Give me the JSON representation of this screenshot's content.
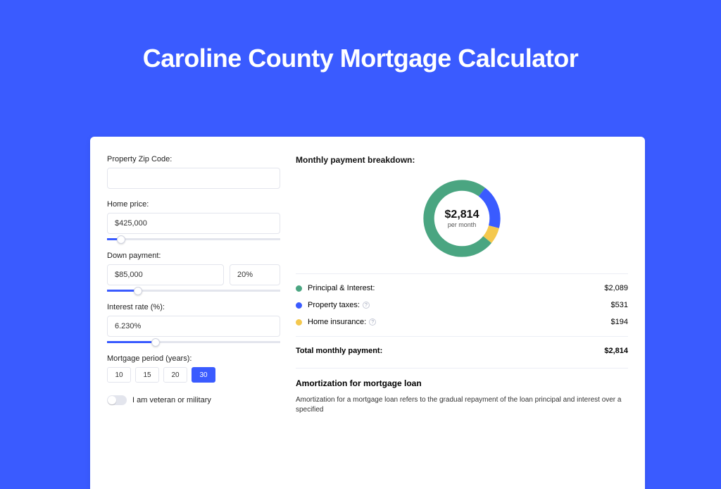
{
  "title": "Caroline County Mortgage Calculator",
  "colors": {
    "page_bg": "#3a5bff",
    "card_bg": "#ffffff",
    "principal": "#4aa581",
    "tax": "#3a5bff",
    "insurance": "#f4c84e",
    "input_border": "#e3e5ed"
  },
  "form": {
    "zip": {
      "label": "Property Zip Code:",
      "value": ""
    },
    "home_price": {
      "label": "Home price:",
      "value": "$425,000",
      "slider_pct": 8
    },
    "down_payment": {
      "label": "Down payment:",
      "value": "$85,000",
      "pct": "20%",
      "slider_pct": 18
    },
    "interest": {
      "label": "Interest rate (%):",
      "value": "6.230%",
      "slider_pct": 28
    },
    "period": {
      "label": "Mortgage period (years):",
      "options": [
        "10",
        "15",
        "20",
        "30"
      ],
      "selected_index": 3
    },
    "veteran": {
      "label": "I am veteran or military",
      "checked": false
    }
  },
  "breakdown": {
    "title": "Monthly payment breakdown:",
    "donut": {
      "amount": "$2,814",
      "sub": "per month",
      "slices": [
        {
          "key": "principal",
          "color": "#4aa581",
          "pct": 74.2
        },
        {
          "key": "tax",
          "color": "#3a5bff",
          "pct": 18.9
        },
        {
          "key": "insurance",
          "color": "#f4c84e",
          "pct": 6.9
        }
      ]
    },
    "rows": [
      {
        "label": "Principal & Interest:",
        "value": "$2,089",
        "color": "#4aa581",
        "info": false
      },
      {
        "label": "Property taxes:",
        "value": "$531",
        "color": "#3a5bff",
        "info": true
      },
      {
        "label": "Home insurance:",
        "value": "$194",
        "color": "#f4c84e",
        "info": true
      }
    ],
    "total": {
      "label": "Total monthly payment:",
      "value": "$2,814"
    }
  },
  "amort": {
    "title": "Amortization for mortgage loan",
    "text": "Amortization for a mortgage loan refers to the gradual repayment of the loan principal and interest over a specified"
  }
}
